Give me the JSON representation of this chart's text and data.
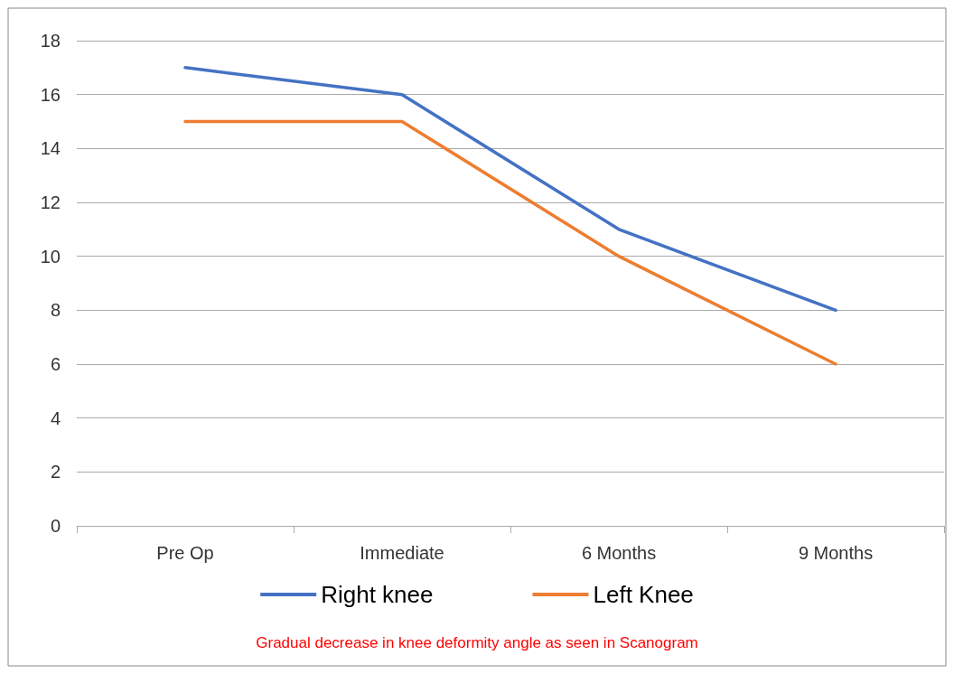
{
  "chart_data": {
    "type": "line",
    "categories": [
      "Pre Op",
      "Immediate",
      "6 Months",
      "9 Months"
    ],
    "series": [
      {
        "name": "Right knee",
        "color": "#4472c4",
        "values": [
          17,
          16,
          11,
          8
        ]
      },
      {
        "name": "Left Knee",
        "color": "#ed7d31",
        "values": [
          15,
          15,
          10,
          6
        ]
      }
    ],
    "ylim": [
      0,
      18
    ],
    "yticks": [
      0,
      2,
      4,
      6,
      8,
      10,
      12,
      14,
      16,
      18
    ],
    "grid": "y",
    "legend": "bottom",
    "marker": "none",
    "line_style": "solid",
    "annotations": [
      "Gradual decrease in knee deformity angle as seen in Scanogram"
    ]
  }
}
